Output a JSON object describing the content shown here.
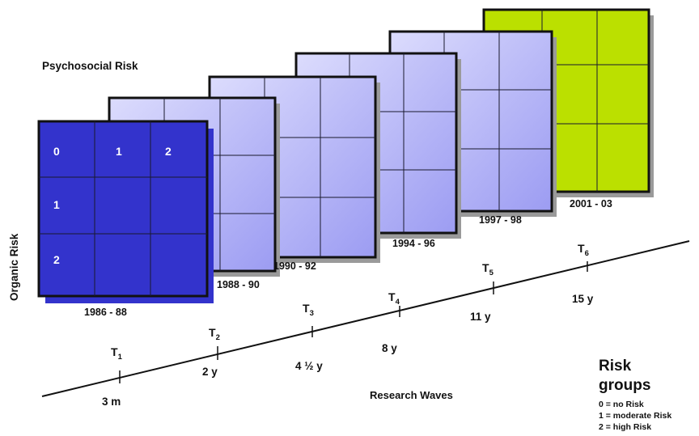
{
  "axes": {
    "psychosocial_label": "Psychosocial Risk",
    "organic_label": "Organic Risk",
    "research_waves_label": "Research Waves"
  },
  "grid": {
    "columns": [
      "0",
      "1",
      "2"
    ],
    "rows": [
      "0",
      "1",
      "2"
    ],
    "row_labels_shown": [
      "1",
      "2"
    ]
  },
  "waves": [
    {
      "period": "1986 - 88",
      "time_point": "T",
      "time_sub": "1",
      "age": "3 m",
      "color": "#3333cc"
    },
    {
      "period": "1988 - 90",
      "time_point": "T",
      "time_sub": "2",
      "age": "2 y",
      "color": "#b9b9f7"
    },
    {
      "period": "1990 - 92",
      "time_point": "T",
      "time_sub": "3",
      "age": "4 ½ y",
      "color": "#b9b9f7"
    },
    {
      "period": "1994 - 96",
      "time_point": "T",
      "time_sub": "4",
      "age": "8 y",
      "color": "#b9b9f7"
    },
    {
      "period": "1997 - 98",
      "time_point": "T",
      "time_sub": "5",
      "age": "11 y",
      "color": "#b9b9f7"
    },
    {
      "period": "2001 - 03",
      "time_point": "T",
      "time_sub": "6",
      "age": "15 y",
      "color": "#bbe000"
    }
  ],
  "legend": {
    "title_line1": "Risk",
    "title_line2": "groups",
    "items": [
      "0 = no Risk",
      "1 = moderate Risk",
      "2 = high Risk"
    ]
  },
  "colors": {
    "first_wave": "#3333cc",
    "middle_waves": "#b9b9f7",
    "last_wave": "#bbe000",
    "border": "#111111",
    "shadow": "#9a9a9a"
  }
}
